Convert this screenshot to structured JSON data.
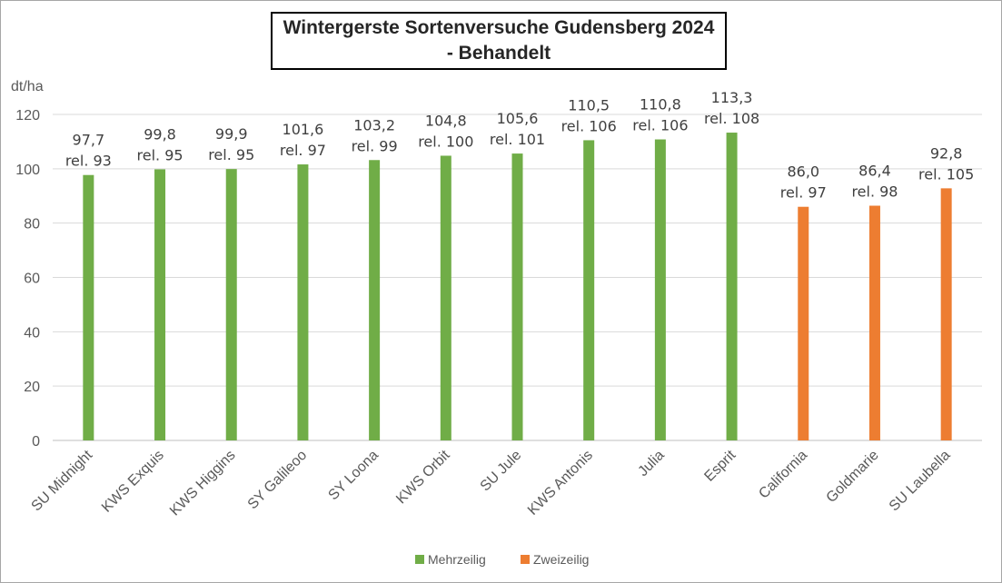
{
  "chart_data": {
    "type": "bar",
    "title_line1": "Wintergerste Sortenversuche Gudensberg 2024",
    "title_line2": "- Behandelt",
    "ylabel": "dt/ha",
    "ylim": [
      0,
      120
    ],
    "yticks": [
      0,
      20,
      40,
      60,
      80,
      100,
      120
    ],
    "grid": true,
    "legend_position": "bottom",
    "categories": [
      "SU Midnight",
      "KWS Exquis",
      "KWS Higgins",
      "SY Galileoo",
      "SY Loona",
      "KWS Orbit",
      "SU Jule",
      "KWS Antonis",
      "Julia",
      "Esprit",
      "California",
      "Goldmarie",
      "SU Laubella"
    ],
    "values": [
      97.7,
      99.8,
      99.9,
      101.6,
      103.2,
      104.8,
      105.6,
      110.5,
      110.8,
      113.3,
      86.0,
      86.4,
      92.8
    ],
    "value_labels": [
      "97,7",
      "99,8",
      "99,9",
      "101,6",
      "103,2",
      "104,8",
      "105,6",
      "110,5",
      "110,8",
      "113,3",
      "86,0",
      "86,4",
      "92,8"
    ],
    "rel_labels": [
      "rel. 93",
      "rel. 95",
      "rel. 95",
      "rel. 97",
      "rel. 99",
      "rel. 100",
      "rel. 101",
      "rel. 106",
      "rel. 106",
      "rel. 108",
      "rel. 97",
      "rel. 98",
      "rel. 105"
    ],
    "series_index": [
      0,
      0,
      0,
      0,
      0,
      0,
      0,
      0,
      0,
      0,
      1,
      1,
      1
    ],
    "series": [
      {
        "name": "Mehrzeilig",
        "color": "#70ad47"
      },
      {
        "name": "Zweizeilig",
        "color": "#ed7d31"
      }
    ]
  }
}
